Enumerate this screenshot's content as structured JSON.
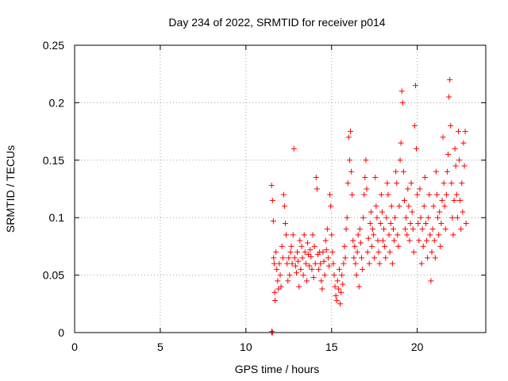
{
  "chart_data": {
    "type": "scatter",
    "title": "Day 234 of 2022, SRMTID for receiver p014",
    "xlabel": "GPS time / hours",
    "ylabel": "SRMTID / TECUs",
    "xlim": [
      0,
      24
    ],
    "ylim": [
      0,
      0.25
    ],
    "xticks": [
      0,
      5,
      10,
      15,
      20
    ],
    "xtick_labels": [
      "0",
      "5",
      "10",
      "15",
      "20"
    ],
    "yticks": [
      0,
      0.05,
      0.1,
      0.15,
      0.2,
      0.25
    ],
    "ytick_labels": [
      "0",
      "0.05",
      "0.1",
      "0.15",
      "0.2",
      "0.25"
    ],
    "grid": true,
    "marker": "+",
    "color": "#ff0000",
    "series": [
      {
        "name": "SRMTID",
        "points": [
          [
            11.5,
            0.0
          ],
          [
            11.52,
            0.001
          ],
          [
            11.55,
            0.0
          ],
          [
            11.5,
            0.128
          ],
          [
            11.55,
            0.115
          ],
          [
            11.6,
            0.097
          ],
          [
            11.62,
            0.065
          ],
          [
            11.65,
            0.06
          ],
          [
            11.68,
            0.035
          ],
          [
            11.7,
            0.028
          ],
          [
            11.75,
            0.07
          ],
          [
            11.8,
            0.055
          ],
          [
            11.85,
            0.045
          ],
          [
            11.9,
            0.038
          ],
          [
            11.95,
            0.06
          ],
          [
            12.0,
            0.05
          ],
          [
            12.05,
            0.04
          ],
          [
            12.1,
            0.075
          ],
          [
            12.15,
            0.065
          ],
          [
            12.2,
            0.12
          ],
          [
            12.25,
            0.11
          ],
          [
            12.3,
            0.095
          ],
          [
            12.35,
            0.085
          ],
          [
            12.4,
            0.06
          ],
          [
            12.45,
            0.045
          ],
          [
            12.5,
            0.065
          ],
          [
            12.55,
            0.05
          ],
          [
            12.6,
            0.07
          ],
          [
            12.65,
            0.075
          ],
          [
            12.7,
            0.06
          ],
          [
            12.75,
            0.085
          ],
          [
            12.8,
            0.16
          ],
          [
            12.85,
            0.065
          ],
          [
            12.9,
            0.058
          ],
          [
            12.95,
            0.052
          ],
          [
            13.0,
            0.07
          ],
          [
            13.05,
            0.062
          ],
          [
            13.1,
            0.04
          ],
          [
            13.15,
            0.08
          ],
          [
            13.2,
            0.055
          ],
          [
            13.25,
            0.075
          ],
          [
            13.3,
            0.065
          ],
          [
            13.35,
            0.05
          ],
          [
            13.4,
            0.085
          ],
          [
            13.45,
            0.07
          ],
          [
            13.5,
            0.06
          ],
          [
            13.55,
            0.045
          ],
          [
            13.6,
            0.078
          ],
          [
            13.65,
            0.068
          ],
          [
            13.7,
            0.058
          ],
          [
            13.75,
            0.072
          ],
          [
            13.8,
            0.066
          ],
          [
            13.85,
            0.055
          ],
          [
            13.9,
            0.085
          ],
          [
            13.95,
            0.048
          ],
          [
            14.0,
            0.075
          ],
          [
            14.05,
            0.06
          ],
          [
            14.1,
            0.135
          ],
          [
            14.15,
            0.125
          ],
          [
            14.2,
            0.068
          ],
          [
            14.25,
            0.055
          ],
          [
            14.3,
            0.07
          ],
          [
            14.35,
            0.06
          ],
          [
            14.4,
            0.045
          ],
          [
            14.45,
            0.038
          ],
          [
            14.5,
            0.07
          ],
          [
            14.55,
            0.062
          ],
          [
            14.6,
            0.05
          ],
          [
            14.65,
            0.08
          ],
          [
            14.7,
            0.072
          ],
          [
            14.75,
            0.09
          ],
          [
            14.8,
            0.065
          ],
          [
            14.85,
            0.058
          ],
          [
            14.9,
            0.12
          ],
          [
            14.95,
            0.11
          ],
          [
            15.0,
            0.085
          ],
          [
            15.05,
            0.07
          ],
          [
            15.1,
            0.06
          ],
          [
            15.15,
            0.05
          ],
          [
            15.2,
            0.04
          ],
          [
            15.25,
            0.032
          ],
          [
            15.3,
            0.028
          ],
          [
            15.35,
            0.045
          ],
          [
            15.4,
            0.038
          ],
          [
            15.45,
            0.055
          ],
          [
            15.5,
            0.025
          ],
          [
            15.55,
            0.035
          ],
          [
            15.6,
            0.05
          ],
          [
            15.65,
            0.042
          ],
          [
            15.7,
            0.06
          ],
          [
            15.75,
            0.075
          ],
          [
            15.8,
            0.065
          ],
          [
            15.85,
            0.09
          ],
          [
            15.9,
            0.1
          ],
          [
            15.95,
            0.13
          ],
          [
            16.0,
            0.17
          ],
          [
            16.05,
            0.15
          ],
          [
            16.1,
            0.175
          ],
          [
            16.15,
            0.14
          ],
          [
            16.2,
            0.12
          ],
          [
            16.25,
            0.08
          ],
          [
            16.3,
            0.065
          ],
          [
            16.35,
            0.075
          ],
          [
            16.4,
            0.06
          ],
          [
            16.45,
            0.05
          ],
          [
            16.5,
            0.07
          ],
          [
            16.55,
            0.085
          ],
          [
            16.6,
            0.04
          ],
          [
            16.65,
            0.09
          ],
          [
            16.7,
            0.078
          ],
          [
            16.75,
            0.065
          ],
          [
            16.8,
            0.055
          ],
          [
            16.85,
            0.1
          ],
          [
            16.9,
            0.12
          ],
          [
            16.95,
            0.135
          ],
          [
            17.0,
            0.15
          ],
          [
            17.05,
            0.125
          ],
          [
            17.1,
            0.07
          ],
          [
            17.15,
            0.082
          ],
          [
            17.2,
            0.06
          ],
          [
            17.25,
            0.095
          ],
          [
            17.3,
            0.105
          ],
          [
            17.35,
            0.075
          ],
          [
            17.4,
            0.09
          ],
          [
            17.45,
            0.085
          ],
          [
            17.5,
            0.065
          ],
          [
            17.55,
            0.135
          ],
          [
            17.6,
            0.11
          ],
          [
            17.65,
            0.1
          ],
          [
            17.7,
            0.08
          ],
          [
            17.75,
            0.07
          ],
          [
            17.8,
            0.06
          ],
          [
            17.85,
            0.095
          ],
          [
            17.9,
            0.12
          ],
          [
            17.95,
            0.105
          ],
          [
            18.0,
            0.08
          ],
          [
            18.05,
            0.09
          ],
          [
            18.1,
            0.075
          ],
          [
            18.15,
            0.065
          ],
          [
            18.2,
            0.1
          ],
          [
            18.25,
            0.13
          ],
          [
            18.3,
            0.12
          ],
          [
            18.35,
            0.085
          ],
          [
            18.4,
            0.07
          ],
          [
            18.45,
            0.095
          ],
          [
            18.5,
            0.11
          ],
          [
            18.55,
            0.06
          ],
          [
            18.6,
            0.09
          ],
          [
            18.65,
            0.08
          ],
          [
            18.7,
            0.1
          ],
          [
            18.75,
            0.14
          ],
          [
            18.8,
            0.13
          ],
          [
            18.85,
            0.085
          ],
          [
            18.9,
            0.075
          ],
          [
            18.95,
            0.11
          ],
          [
            19.0,
            0.15
          ],
          [
            19.05,
            0.165
          ],
          [
            19.1,
            0.21
          ],
          [
            19.15,
            0.2
          ],
          [
            19.2,
            0.14
          ],
          [
            19.25,
            0.115
          ],
          [
            19.3,
            0.09
          ],
          [
            19.35,
            0.1
          ],
          [
            19.4,
            0.085
          ],
          [
            19.45,
            0.125
          ],
          [
            19.5,
            0.11
          ],
          [
            19.55,
            0.08
          ],
          [
            19.6,
            0.095
          ],
          [
            19.65,
            0.13
          ],
          [
            19.7,
            0.105
          ],
          [
            19.75,
            0.09
          ],
          [
            19.8,
            0.07
          ],
          [
            19.85,
            0.18
          ],
          [
            19.9,
            0.215
          ],
          [
            19.95,
            0.16
          ],
          [
            20.0,
            0.12
          ],
          [
            20.05,
            0.095
          ],
          [
            20.1,
            0.08
          ],
          [
            20.15,
            0.125
          ],
          [
            20.2,
            0.1
          ],
          [
            20.25,
            0.06
          ],
          [
            20.3,
            0.09
          ],
          [
            20.35,
            0.075
          ],
          [
            20.4,
            0.11
          ],
          [
            20.45,
            0.135
          ],
          [
            20.5,
            0.095
          ],
          [
            20.55,
            0.08
          ],
          [
            20.6,
            0.065
          ],
          [
            20.65,
            0.1
          ],
          [
            20.7,
            0.12
          ],
          [
            20.75,
            0.085
          ],
          [
            20.8,
            0.045
          ],
          [
            20.85,
            0.07
          ],
          [
            20.9,
            0.09
          ],
          [
            20.95,
            0.11
          ],
          [
            21.0,
            0.08
          ],
          [
            21.05,
            0.065
          ],
          [
            21.1,
            0.14
          ],
          [
            21.15,
            0.12
          ],
          [
            21.2,
            0.1
          ],
          [
            21.25,
            0.085
          ],
          [
            21.3,
            0.105
          ],
          [
            21.35,
            0.075
          ],
          [
            21.4,
            0.095
          ],
          [
            21.45,
            0.115
          ],
          [
            21.5,
            0.17
          ],
          [
            21.55,
            0.13
          ],
          [
            21.6,
            0.11
          ],
          [
            21.65,
            0.09
          ],
          [
            21.7,
            0.12
          ],
          [
            21.75,
            0.14
          ],
          [
            21.8,
            0.155
          ],
          [
            21.85,
            0.205
          ],
          [
            21.9,
            0.22
          ],
          [
            21.95,
            0.18
          ],
          [
            22.0,
            0.13
          ],
          [
            22.05,
            0.1
          ],
          [
            22.1,
            0.085
          ],
          [
            22.15,
            0.115
          ],
          [
            22.2,
            0.16
          ],
          [
            22.25,
            0.145
          ],
          [
            22.3,
            0.12
          ],
          [
            22.35,
            0.1
          ],
          [
            22.4,
            0.175
          ],
          [
            22.45,
            0.15
          ],
          [
            22.5,
            0.115
          ],
          [
            22.55,
            0.09
          ],
          [
            22.6,
            0.13
          ],
          [
            22.65,
            0.105
          ],
          [
            22.7,
            0.165
          ],
          [
            22.75,
            0.145
          ],
          [
            22.8,
            0.175
          ],
          [
            22.85,
            0.095
          ]
        ]
      }
    ]
  }
}
